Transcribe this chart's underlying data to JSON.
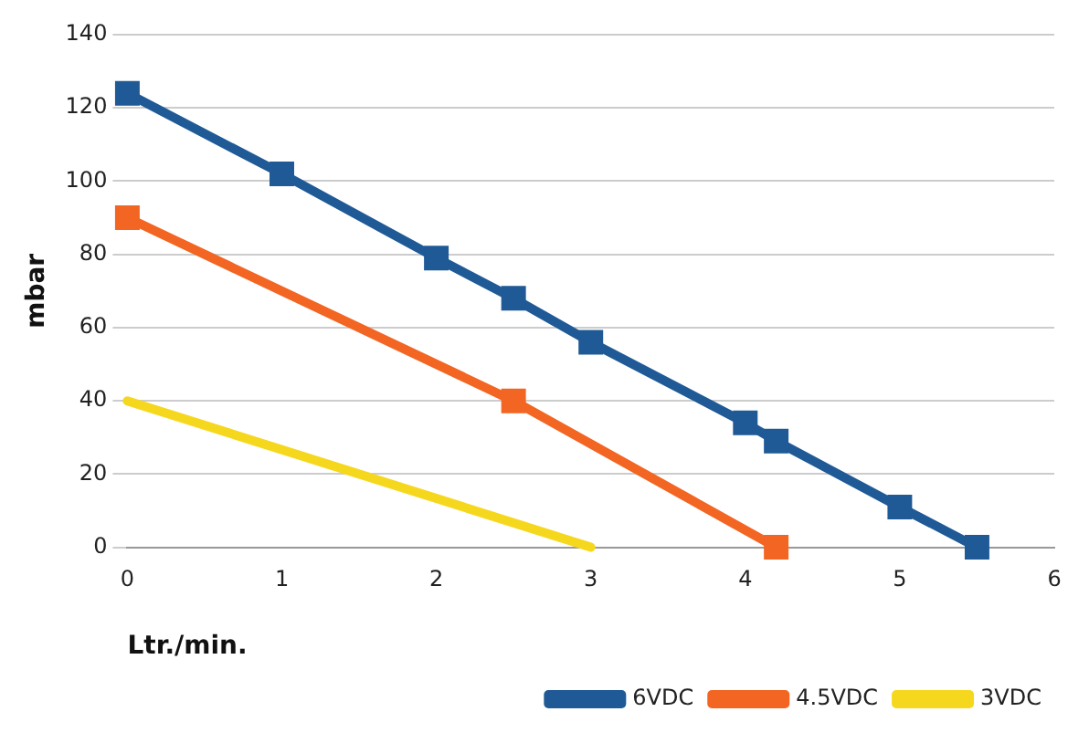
{
  "chart_data": {
    "type": "line",
    "xlabel": "Ltr./min.",
    "ylabel": "mbar",
    "xlim": [
      0,
      6
    ],
    "xticks": [
      0,
      1,
      2,
      3,
      4,
      5,
      6
    ],
    "ylim": [
      0,
      140
    ],
    "yticks": [
      0,
      20,
      40,
      60,
      80,
      100,
      120,
      140
    ],
    "grid": "y",
    "legend": "bottom right",
    "marker": "square",
    "line_style": "solid",
    "series": [
      {
        "name": "6VDC",
        "color": "#1f5a96",
        "x": [
          0,
          1,
          2,
          2.5,
          3,
          4,
          4.2,
          5,
          5.5
        ],
        "values": [
          124,
          102,
          79,
          68,
          56,
          34,
          29,
          11,
          0
        ]
      },
      {
        "name": "4.5VDC",
        "color": "#f26522",
        "x": [
          0,
          2.5,
          4.2
        ],
        "values": [
          90,
          40,
          0
        ]
      },
      {
        "name": "3VDC",
        "color": "#f5d81e",
        "x": [
          0,
          3
        ],
        "values": [
          40,
          0
        ],
        "marker": "none"
      }
    ]
  }
}
